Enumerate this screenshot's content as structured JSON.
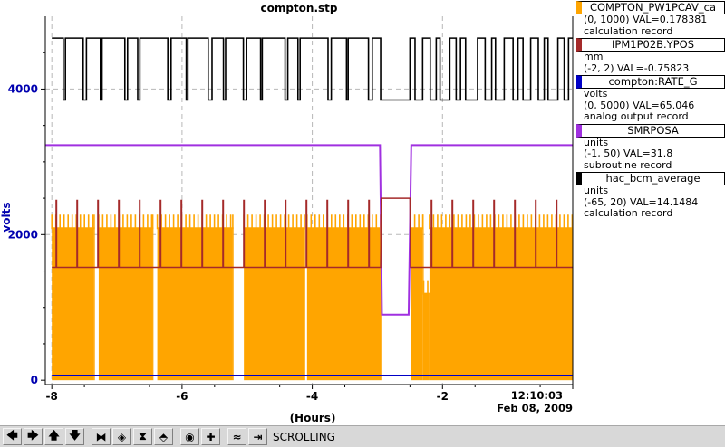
{
  "chart_data": {
    "type": "line",
    "title": "compton.stp",
    "xlabel": "(Hours)",
    "ylabel": "volts",
    "xlim": [
      -8.1,
      0.0
    ],
    "ylim": [
      -60,
      5000
    ],
    "x_ticks": [
      -8,
      -6,
      -4,
      -2
    ],
    "x_tick_labels": [
      "-8",
      "-6",
      "-4",
      "-2"
    ],
    "end_time_label": "12:10:03",
    "end_date_label": "Feb 08, 2009",
    "y_ticks": [
      0,
      2000,
      4000
    ],
    "y_tick_labels": [
      "0",
      "2000",
      "4000"
    ],
    "grid": true,
    "series": [
      {
        "name": "COMPTON_PW1PCAV_ca",
        "color": "#ffa500",
        "style": "dense-oscillation",
        "x": [
          -8.0,
          -7.35,
          -7.34,
          -7.28,
          -6.45,
          -6.44,
          -6.38,
          -5.22,
          -5.21,
          -5.05,
          -4.12,
          -4.11,
          -4.08,
          -2.95,
          -2.94,
          -2.5,
          -2.49,
          -2.3,
          -2.29,
          -2.2,
          0.0
        ],
        "values": [
          2100,
          2100,
          0,
          2100,
          2100,
          0,
          2100,
          2100,
          0,
          2100,
          2100,
          0,
          2100,
          2100,
          0,
          0,
          2100,
          2100,
          1200,
          2100,
          2100
        ]
      },
      {
        "name": "IPM1P02B.YPOS",
        "color": "#a52a2a",
        "x": [
          -8.0,
          -2.95,
          -2.94,
          -2.5,
          -2.49,
          0.0
        ],
        "values": [
          1550,
          1550,
          2500,
          2500,
          1550,
          1550
        ]
      },
      {
        "name": "compton:RATE_G",
        "color": "#0000c8",
        "x": [
          -8.0,
          0.0
        ],
        "values": [
          65,
          65
        ]
      },
      {
        "name": "SMRPOSA",
        "color": "#a030e0",
        "x": [
          -8.1,
          -2.96,
          -2.93,
          -2.52,
          -2.48,
          0.0
        ],
        "values": [
          3230,
          3230,
          900,
          900,
          3230,
          3230
        ]
      },
      {
        "name": "hac_bcm_average",
        "color": "#000000",
        "style": "square-wave",
        "x": [
          -8.0,
          -2.95,
          -2.94,
          -2.5,
          -2.49,
          0.0
        ],
        "values": [
          4700,
          4700,
          3850,
          3850,
          4700,
          4700
        ],
        "low": 3850,
        "high": 4700
      }
    ]
  },
  "legend": [
    {
      "name": "COMPTON_PW1PCAV_ca",
      "color": "#ffa500",
      "range": "(0, 1000) VAL=0.178381",
      "line2": "calculation record",
      "line3": ""
    },
    {
      "name": "IPM1P02B.YPOS",
      "color": "#a52a2a",
      "range": "mm",
      "line2": "(-2, 2) VAL=-0.75823",
      "line3": ""
    },
    {
      "name": "compton:RATE_G",
      "color": "#0000c8",
      "range": "volts",
      "line2": "(0, 5000) VAL=65.046",
      "line3": "analog output record"
    },
    {
      "name": "SMRPOSA",
      "color": "#a030e0",
      "range": "units",
      "line2": "(-1, 50) VAL=31.8",
      "line3": "subroutine record"
    },
    {
      "name": "hac_bcm_average",
      "color": "#000000",
      "range": "units",
      "line2": "(-65, 20) VAL=14.1484",
      "line3": "calculation record"
    }
  ],
  "toolbar": {
    "buttons": [
      {
        "name": "pan-left-icon",
        "glyph": "🡄"
      },
      {
        "name": "pan-right-icon",
        "glyph": "🡆"
      },
      {
        "name": "pan-up-icon",
        "glyph": "🡅"
      },
      {
        "name": "pan-down-icon",
        "glyph": "🡇"
      },
      {
        "name": "zoom-in-horizontal-icon",
        "glyph": "⧓"
      },
      {
        "name": "zoom-out-horizontal-icon",
        "glyph": "◈"
      },
      {
        "name": "zoom-in-vertical-icon",
        "glyph": "⧗"
      },
      {
        "name": "zoom-out-vertical-icon",
        "glyph": "⬘"
      },
      {
        "name": "auto-scale-icon",
        "glyph": "◉"
      },
      {
        "name": "add-pv-icon",
        "glyph": "✚"
      },
      {
        "name": "stagger-icon",
        "glyph": "≈"
      },
      {
        "name": "scroll-mode-icon",
        "glyph": "⇥"
      }
    ],
    "status": "SCROLLING"
  }
}
